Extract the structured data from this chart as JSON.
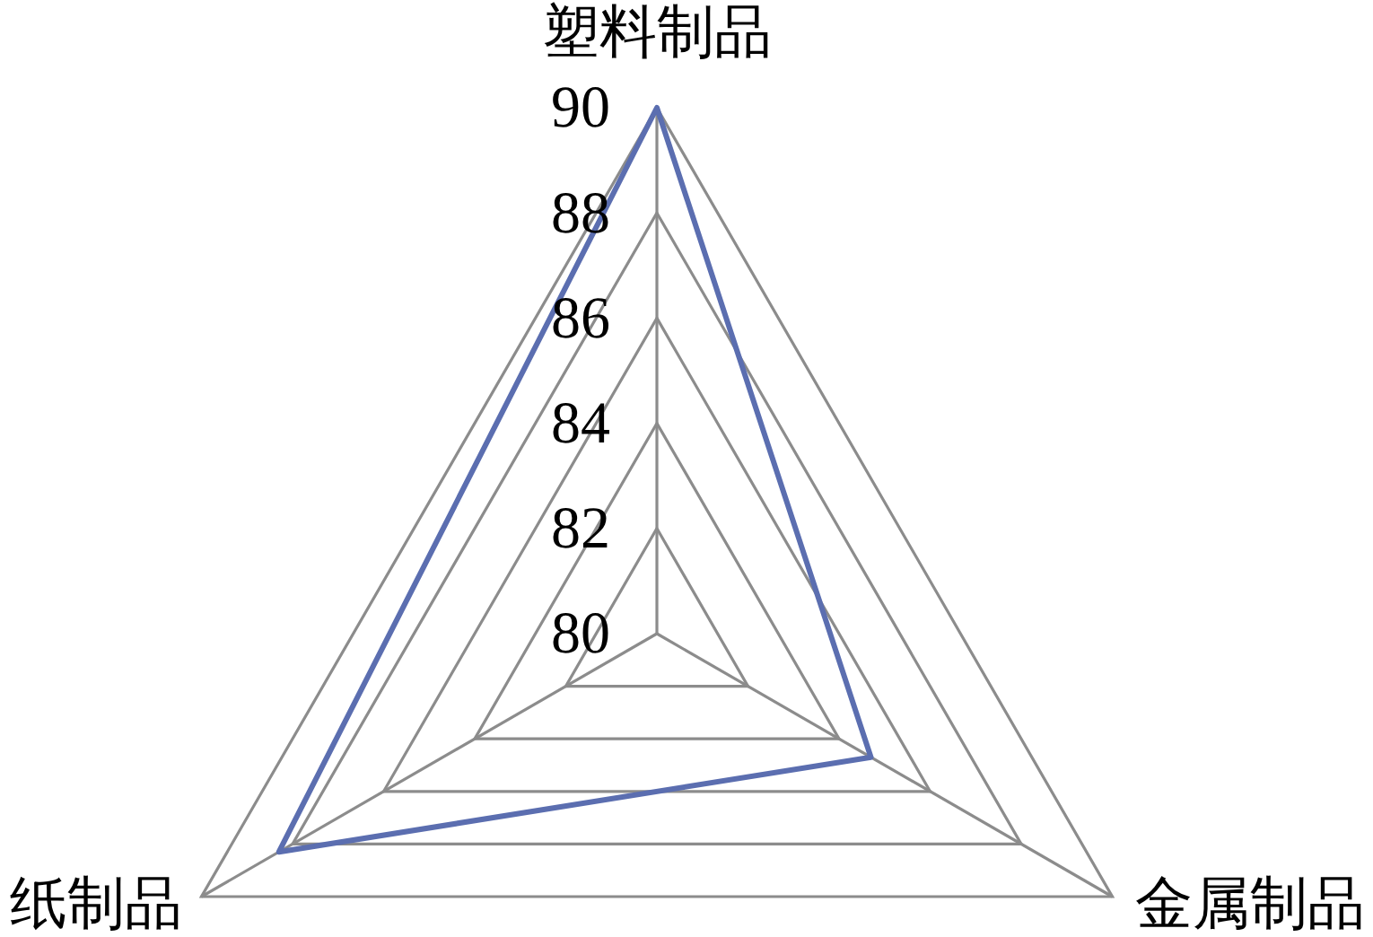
{
  "chart_data": {
    "type": "radar",
    "categories": [
      "塑料制品",
      "金属制品",
      "纸制品"
    ],
    "series": [
      {
        "color": "#5b6eb0",
        "values": [
          90,
          84.7,
          88.3
        ]
      }
    ],
    "ylim": [
      80,
      90
    ],
    "yticks": [
      80,
      82,
      84,
      86,
      88,
      90
    ],
    "grid": true,
    "marker": "none"
  }
}
